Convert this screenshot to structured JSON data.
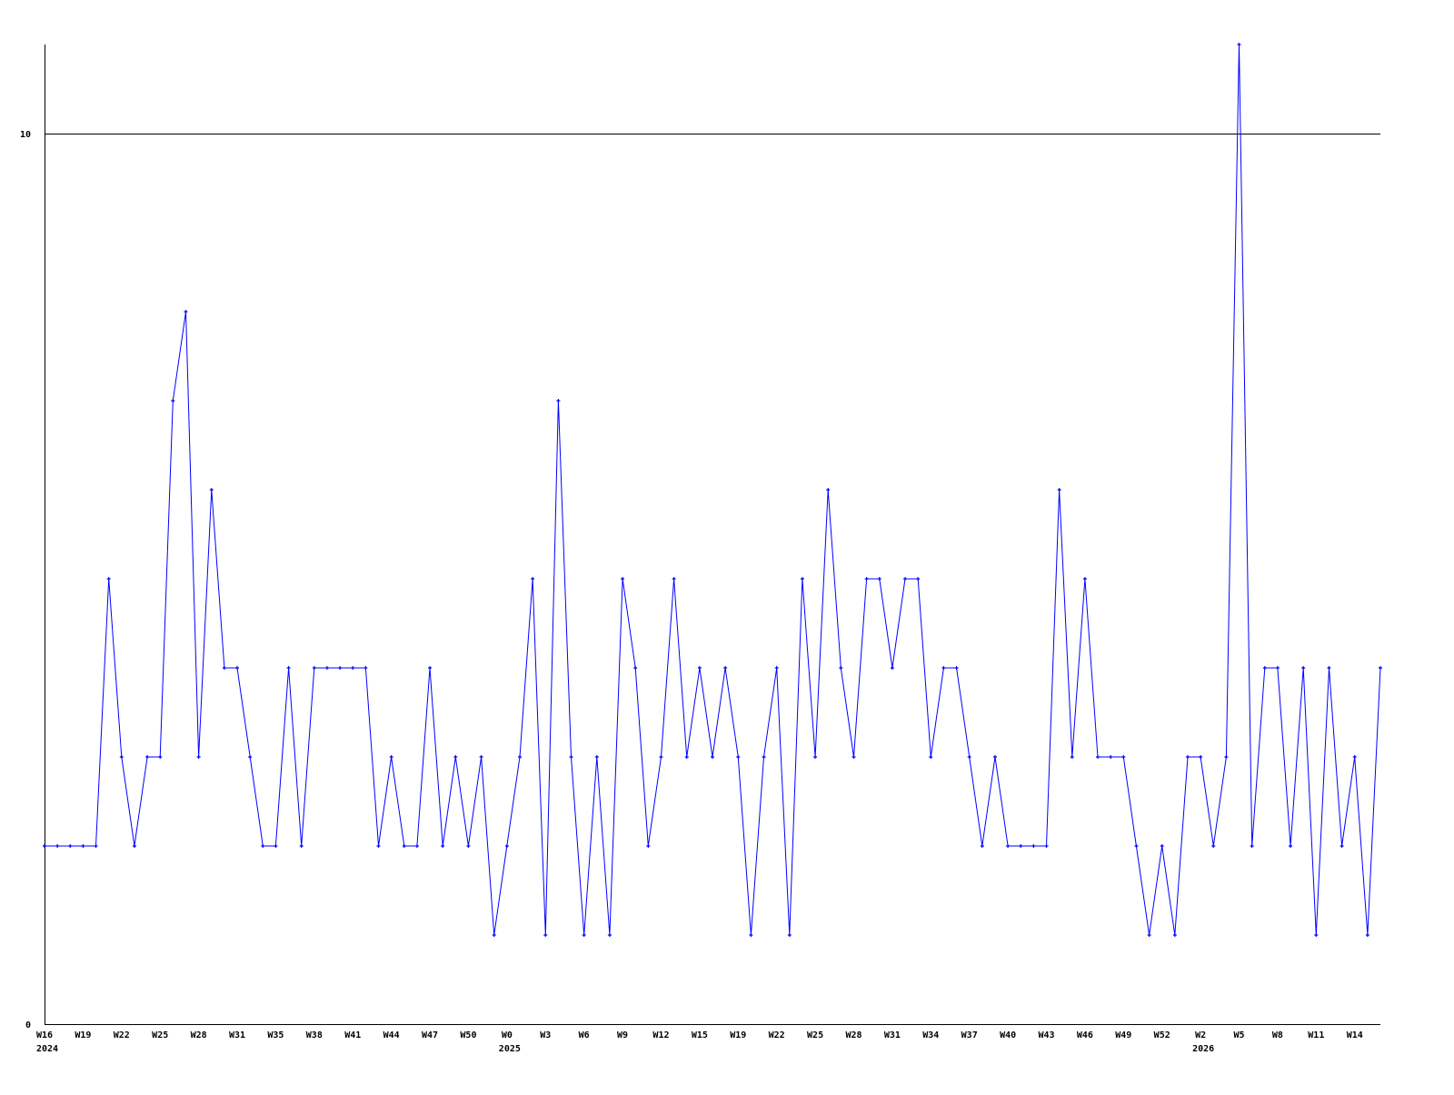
{
  "chart_data": {
    "type": "line",
    "title": "",
    "xlabel": "",
    "ylabel": "",
    "ylim": [
      0,
      11
    ],
    "y_ticks": [
      {
        "value": 0,
        "label": "0"
      },
      {
        "value": 10,
        "label": "10"
      }
    ],
    "grid": "horizontal line at 10",
    "colors": {
      "series": "#0000ff",
      "axis": "#000000",
      "background": "#ffffff"
    },
    "values": [
      2,
      2,
      2,
      2,
      2,
      5,
      3,
      2,
      3,
      3,
      7,
      8,
      3,
      6,
      4,
      4,
      3,
      2,
      2,
      4,
      2,
      4,
      4,
      4,
      4,
      4,
      2,
      3,
      2,
      2,
      4,
      2,
      3,
      2,
      3,
      1,
      2,
      3,
      5,
      1,
      7,
      3,
      1,
      3,
      1,
      5,
      4,
      2,
      3,
      5,
      3,
      4,
      3,
      4,
      3,
      1,
      3,
      4,
      1,
      5,
      3,
      6,
      4,
      3,
      5,
      5,
      4,
      5,
      5,
      3,
      4,
      4,
      3,
      2,
      3,
      2,
      2,
      2,
      2,
      6,
      3,
      5,
      3,
      3,
      3,
      2,
      1,
      2,
      1,
      3,
      3,
      2,
      3,
      11,
      2,
      4,
      4,
      2,
      4,
      1,
      4,
      2,
      3,
      1,
      4
    ],
    "x_ticks": [
      {
        "index": 0,
        "label": "W16"
      },
      {
        "index": 3,
        "label": "W19"
      },
      {
        "index": 6,
        "label": "W22"
      },
      {
        "index": 9,
        "label": "W25"
      },
      {
        "index": 12,
        "label": "W28"
      },
      {
        "index": 15,
        "label": "W31"
      },
      {
        "index": 18,
        "label": "W35"
      },
      {
        "index": 21,
        "label": "W38"
      },
      {
        "index": 24,
        "label": "W41"
      },
      {
        "index": 27,
        "label": "W44"
      },
      {
        "index": 30,
        "label": "W47"
      },
      {
        "index": 33,
        "label": "W50"
      },
      {
        "index": 36,
        "label": "W0"
      },
      {
        "index": 39,
        "label": "W3"
      },
      {
        "index": 42,
        "label": "W6"
      },
      {
        "index": 45,
        "label": "W9"
      },
      {
        "index": 48,
        "label": "W12"
      },
      {
        "index": 51,
        "label": "W15"
      },
      {
        "index": 54,
        "label": "W19"
      },
      {
        "index": 57,
        "label": "W22"
      },
      {
        "index": 60,
        "label": "W25"
      },
      {
        "index": 63,
        "label": "W28"
      },
      {
        "index": 66,
        "label": "W31"
      },
      {
        "index": 69,
        "label": "W34"
      },
      {
        "index": 72,
        "label": "W37"
      },
      {
        "index": 75,
        "label": "W40"
      },
      {
        "index": 78,
        "label": "W43"
      },
      {
        "index": 81,
        "label": "W46"
      },
      {
        "index": 84,
        "label": "W49"
      },
      {
        "index": 87,
        "label": "W52"
      },
      {
        "index": 90,
        "label": "W2"
      },
      {
        "index": 93,
        "label": "W5"
      },
      {
        "index": 96,
        "label": "W8"
      },
      {
        "index": 99,
        "label": "W11"
      },
      {
        "index": 102,
        "label": "W14"
      }
    ],
    "year_labels": [
      {
        "index": 0,
        "label": "2024"
      },
      {
        "index": 36,
        "label": "2025"
      },
      {
        "index": 90,
        "label": "2026"
      }
    ]
  }
}
